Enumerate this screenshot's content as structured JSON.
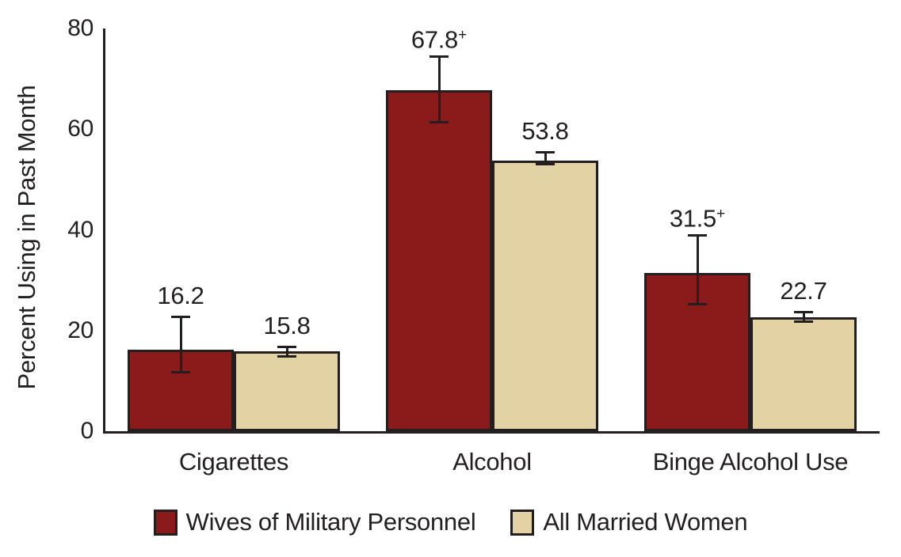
{
  "chart_data": {
    "type": "bar",
    "title": "",
    "ylabel": "Percent Using in Past Month",
    "xlabel": "",
    "ylim": [
      0,
      80
    ],
    "yticks": [
      0,
      20,
      40,
      60,
      80
    ],
    "grid": false,
    "error_bars": true,
    "legend_position": "bottom",
    "categories": [
      "Cigarettes",
      "Alcohol",
      "Binge Alcohol Use"
    ],
    "series": [
      {
        "name": "Wives of Military Personnel",
        "color": "#8B1B1A",
        "values": [
          16.2,
          67.8,
          31.5
        ],
        "value_labels": [
          "16.2",
          "67.8",
          "31.5"
        ],
        "label_flags": [
          "",
          "+",
          "+"
        ],
        "error_low": [
          11.5,
          61.2,
          25.0
        ],
        "error_high": [
          22.9,
          74.7,
          39.1
        ]
      },
      {
        "name": "All Married Women",
        "color": "#E2D2A4",
        "values": [
          15.8,
          53.8,
          22.7
        ],
        "value_labels": [
          "15.8",
          "53.8",
          "22.7"
        ],
        "label_flags": [
          "",
          "",
          ""
        ],
        "error_low": [
          14.6,
          52.8,
          21.6
        ],
        "error_high": [
          17.0,
          55.6,
          23.9
        ]
      }
    ],
    "colors": {
      "axis": "#231F20",
      "text": "#231F20",
      "background": "#FFFFFF"
    }
  }
}
